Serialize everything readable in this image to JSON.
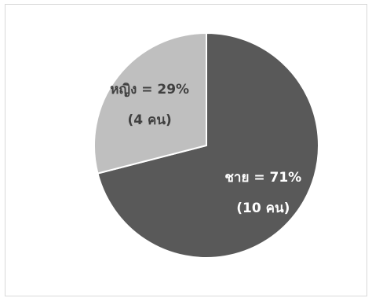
{
  "chart_data": {
    "type": "pie",
    "title": "",
    "slices": [
      {
        "label": "ชาย = 71%",
        "sublabel": "(10 คน)",
        "value": 71,
        "count": 10,
        "color": "#595959",
        "text_color": "#ffffff"
      },
      {
        "label": "หญิง = 29%",
        "sublabel": "(4 คน)",
        "value": 29,
        "count": 4,
        "color": "#bfbfbf",
        "text_color": "#404040"
      }
    ],
    "legend": "none",
    "start": "top",
    "direction": "clockwise"
  }
}
